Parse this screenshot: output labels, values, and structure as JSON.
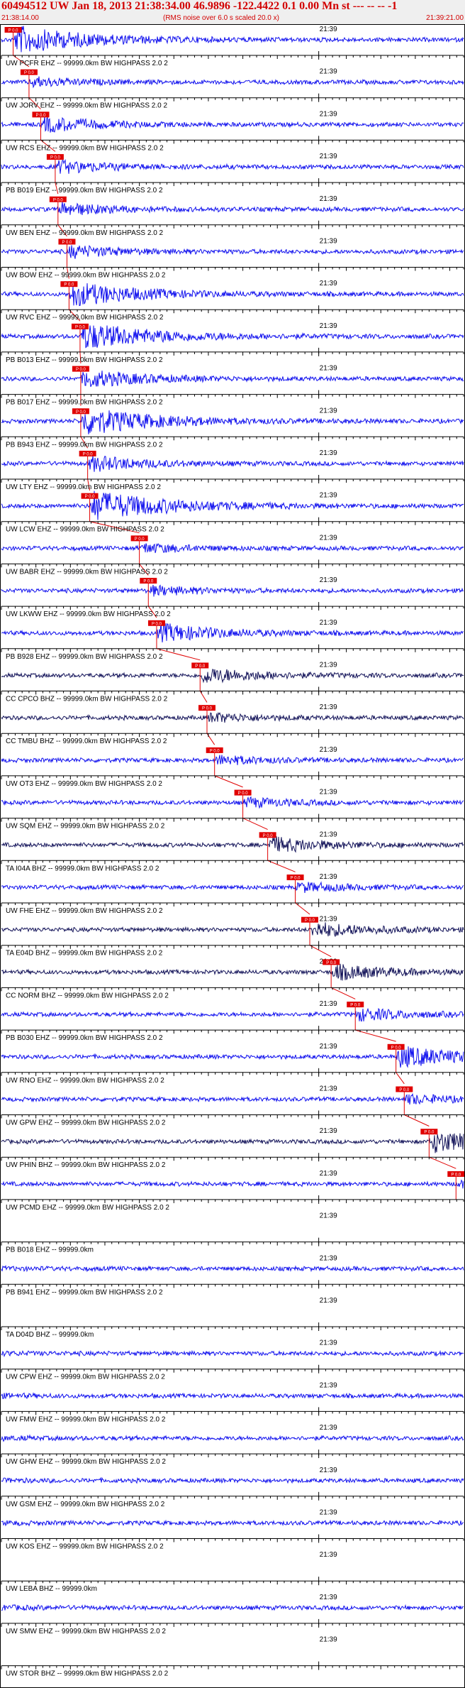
{
  "header": {
    "title": "60494512 UW Jan 18, 2013 21:38:34.00   46.9896 -122.4422  0.1 0.00 Mn st --- -- --  -1",
    "time_start": "21:38:14.00",
    "rms_note": "(RMS noise over 6.0 s scaled 20.0 x)",
    "time_end": "21:39:21.00"
  },
  "colors": {
    "trace": "#1010ee",
    "trace_dark": "#14145a",
    "pick_box": "#e00000",
    "pick_line": "#e00000",
    "axis": "#000000",
    "text": "#000000"
  },
  "chart_data": {
    "type": "seismogram",
    "time_range": [
      "21:38:14.00",
      "21:39:21.00"
    ],
    "tick_label": "21:39",
    "tick_label_time": "21:39:00",
    "pick_label": "P 0.0",
    "channels": [
      {
        "label": "UW PCFR EHZ -- 99999.0km BW  HIGHPASS  2.0  2",
        "pick_time": "21:38:15.7",
        "amplitude": 0.9
      },
      {
        "label": "UW JORV EHZ -- 99999.0km BW  HIGHPASS  2.0  2",
        "pick_time": "21:38:18.0",
        "amplitude": 0.3
      },
      {
        "label": "UW RCS EHZ -- 99999.0km BW  HIGHPASS  2.0  2",
        "pick_time": "21:38:19.7",
        "amplitude": 0.5
      },
      {
        "label": "PB B019 EHZ -- 99999.0km BW  HIGHPASS  2.0  2",
        "pick_time": "21:38:21.8",
        "amplitude": 0.4
      },
      {
        "label": "UW BEN EHZ -- 99999.0km BW  HIGHPASS  2.0  2",
        "pick_time": "21:38:22.2",
        "amplitude": 0.4
      },
      {
        "label": "UW BOW EHZ -- 99999.0km BW  HIGHPASS  2.0  2",
        "pick_time": "21:38:23.5",
        "amplitude": 0.4
      },
      {
        "label": "UW RVC EHZ -- 99999.0km BW  HIGHPASS  2.0  2",
        "pick_time": "21:38:23.8",
        "amplitude": 0.8
      },
      {
        "label": "PB B013 EHZ -- 99999.0km BW  HIGHPASS  2.0  2",
        "pick_time": "21:38:25.4",
        "amplitude": 0.9
      },
      {
        "label": "PB B017 EHZ -- 99999.0km BW  HIGHPASS  2.0  2",
        "pick_time": "21:38:25.5",
        "amplitude": 0.6
      },
      {
        "label": "PB B943 EHZ -- 99999.0km BW  HIGHPASS  2.0  2",
        "pick_time": "21:38:25.5",
        "amplitude": 0.9
      },
      {
        "label": "UW LTY EHZ -- 99999.0km BW  HIGHPASS  2.0  2",
        "pick_time": "21:38:26.5",
        "amplitude": 0.5
      },
      {
        "label": "UW LCW EHZ -- 99999.0km BW  HIGHPASS  2.0  2",
        "pick_time": "21:38:26.8",
        "amplitude": 1.0
      },
      {
        "label": "UW BABR EHZ -- 99999.0km BW  HIGHPASS  2.0  2",
        "pick_time": "21:38:34.0",
        "amplitude": 0.3
      },
      {
        "label": "UW LKWW EHZ -- 99999.0km BW  HIGHPASS  2.0  2",
        "pick_time": "21:38:35.3",
        "amplitude": 0.3
      },
      {
        "label": "PB B928 EHZ -- 99999.0km BW  HIGHPASS  2.0  2",
        "pick_time": "21:38:36.5",
        "amplitude": 0.6
      },
      {
        "label": "CC CPCO BHZ -- 99999.0km BW  HIGHPASS  2.0  2",
        "pick_time": "21:38:42.8",
        "amplitude": 0.5
      },
      {
        "label": "CC TMBU BHZ -- 99999.0km BW  HIGHPASS  2.0  2",
        "pick_time": "21:38:43.8",
        "amplitude": 0.3
      },
      {
        "label": "UW OT3 EHZ -- 99999.0km BW  HIGHPASS  2.0  2",
        "pick_time": "21:38:44.9",
        "amplitude": 0.3
      },
      {
        "label": "UW SQM EHZ -- 99999.0km BW  HIGHPASS  2.0  2",
        "pick_time": "21:38:49.0",
        "amplitude": 0.3
      },
      {
        "label": "TA I04A BHZ -- 99999.0km BW  HIGHPASS  2.0  2",
        "pick_time": "21:38:52.6",
        "amplitude": 0.5
      },
      {
        "label": "UW FHE EHZ -- 99999.0km BW  HIGHPASS  2.0  2",
        "pick_time": "21:38:56.6",
        "amplitude": 0.3
      },
      {
        "label": "TA E04D BHZ -- 99999.0km BW  HIGHPASS  2.0  2",
        "pick_time": "21:38:58.7",
        "amplitude": 0.5
      },
      {
        "label": "CC NORM BHZ -- 99999.0km BW  HIGHPASS  2.0  2",
        "pick_time": "21:39:01.8",
        "amplitude": 0.5
      },
      {
        "label": "PB B030 EHZ -- 99999.0km BW  HIGHPASS  2.0  2",
        "pick_time": "21:39:05.3",
        "amplitude": 0.4
      },
      {
        "label": "UW RNO EHZ -- 99999.0km BW  HIGHPASS  2.0  2",
        "pick_time": "21:39:11.2",
        "amplitude": 0.7
      },
      {
        "label": "UW GPW EHZ -- 99999.0km BW  HIGHPASS  2.0  2",
        "pick_time": "21:39:12.4",
        "amplitude": 0.3
      },
      {
        "label": "UW PHIN BHZ -- 99999.0km BW  HIGHPASS  2.0  2",
        "pick_time": "21:39:16.0",
        "amplitude": 0.7
      },
      {
        "label": "UW PCMD EHZ -- 99999.0km BW  HIGHPASS  2.0  2",
        "pick_time": "21:39:19.9",
        "amplitude": 0.25
      },
      {
        "label": "PB B018 EHZ -- 99999.0km",
        "pick_time": null,
        "amplitude": 0.0
      },
      {
        "label": "PB B941 EHZ -- 99999.0km BW  HIGHPASS  2.0  2",
        "pick_time": null,
        "amplitude": 0.25
      },
      {
        "label": "TA D04D BHZ -- 99999.0km",
        "pick_time": null,
        "amplitude": 0.0
      },
      {
        "label": "UW CPW EHZ -- 99999.0km BW  HIGHPASS  2.0  2",
        "pick_time": null,
        "amplitude": 0.3
      },
      {
        "label": "UW FMW EHZ -- 99999.0km BW  HIGHPASS  2.0  2",
        "pick_time": null,
        "amplitude": 0.3
      },
      {
        "label": "UW GHW EHZ -- 99999.0km BW  HIGHPASS  2.0  2",
        "pick_time": null,
        "amplitude": 0.3
      },
      {
        "label": "UW GSM EHZ -- 99999.0km BW  HIGHPASS  2.0  2",
        "pick_time": null,
        "amplitude": 0.25
      },
      {
        "label": "UW KOS EHZ -- 99999.0km BW  HIGHPASS  2.0  2",
        "pick_time": null,
        "amplitude": 0.25
      },
      {
        "label": "UW LEBA BHZ -- 99999.0km",
        "pick_time": null,
        "amplitude": 0.0
      },
      {
        "label": "UW SMW EHZ -- 99999.0km BW  HIGHPASS  2.0  2",
        "pick_time": null,
        "amplitude": 0.35
      },
      {
        "label": "UW STOR BHZ -- 99999.0km BW  HIGHPASS  2.0  2",
        "pick_time": null,
        "amplitude": 0.0
      }
    ]
  }
}
